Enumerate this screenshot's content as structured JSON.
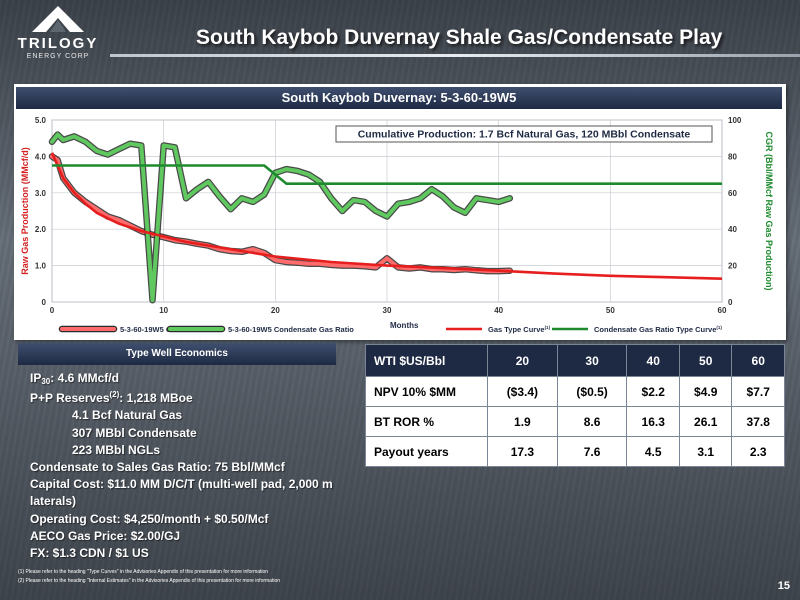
{
  "header": {
    "logo_name": "TRILOGY",
    "logo_sub": "ENERGY CORP",
    "title": "South Kaybob Duvernay Shale Gas/Condensate Play"
  },
  "chart_panel": {
    "title": "South Kaybob Duvernay: 5-3-60-19W5"
  },
  "chart_data": {
    "type": "line",
    "title": "South Kaybob Duvernay: 5-3-60-19W5",
    "annotation": "Cumulative Production: 1.7 Bcf Natural Gas, 120 MBbl Condensate",
    "xlabel": "Months",
    "ylabel": "Raw Gas Production (MMcf/d)",
    "y2label": "CGR (Bbl/MMcf Raw Gas Production)",
    "xlim": [
      0,
      60
    ],
    "ylim": [
      0,
      5
    ],
    "y2lim": [
      0,
      100
    ],
    "x_ticks": [
      "0",
      "10",
      "20",
      "30",
      "40",
      "50",
      "60"
    ],
    "y_ticks": [
      "0",
      "1.0",
      "2.0",
      "3.0",
      "4.0",
      "5.0"
    ],
    "y2_ticks": [
      "0",
      "20",
      "40",
      "60",
      "80",
      "100"
    ],
    "grid": true,
    "legend_position": "bottom",
    "series": [
      {
        "name": "5-3-60-19W5 Gas",
        "axis": "left",
        "color": "#ff6b6b",
        "style": "actual",
        "x": [
          0,
          0.5,
          1,
          2,
          3,
          4,
          5,
          6,
          7,
          8,
          9,
          10,
          11,
          12,
          13,
          14,
          15,
          16,
          17,
          18,
          19,
          20,
          21,
          22,
          23,
          24,
          25,
          26,
          27,
          28,
          29,
          30,
          31,
          32,
          33,
          34,
          35,
          36,
          37,
          38,
          39,
          40,
          41
        ],
        "values": [
          4.0,
          3.9,
          3.4,
          3.0,
          2.75,
          2.55,
          2.35,
          2.25,
          2.1,
          1.95,
          1.85,
          1.78,
          1.7,
          1.66,
          1.6,
          1.55,
          1.45,
          1.4,
          1.38,
          1.45,
          1.35,
          1.15,
          1.1,
          1.08,
          1.05,
          1.05,
          1.02,
          1.0,
          1.0,
          0.98,
          0.95,
          1.2,
          0.95,
          0.92,
          0.95,
          0.9,
          0.9,
          0.88,
          0.9,
          0.87,
          0.85,
          0.85,
          0.86
        ]
      },
      {
        "name": "5-3-60-19W5 Condensate Gas Ratio",
        "axis": "right",
        "color": "#5fc85f",
        "style": "actual",
        "x": [
          0,
          0.5,
          1,
          2,
          3,
          4,
          5,
          6,
          7,
          8,
          9,
          10,
          11,
          12,
          13,
          14,
          15,
          16,
          17,
          18,
          19,
          20,
          21,
          22,
          23,
          24,
          25,
          26,
          27,
          28,
          29,
          30,
          31,
          32,
          33,
          34,
          35,
          36,
          37,
          38,
          39,
          40,
          41
        ],
        "values": [
          88,
          92,
          89,
          91,
          88,
          83,
          81,
          84,
          87,
          86,
          1,
          86,
          85,
          57,
          62,
          66,
          58,
          51,
          57,
          55,
          59,
          71,
          73,
          72,
          70,
          66,
          57,
          50,
          56,
          55,
          50,
          47,
          54,
          55,
          57,
          62,
          58,
          52,
          49,
          57,
          56,
          55,
          57
        ]
      },
      {
        "name": "Gas Type Curve",
        "name_superscript": "(1)",
        "axis": "left",
        "color": "#e61e1e",
        "style": "type",
        "x": [
          0,
          1,
          2,
          3,
          4,
          5,
          6,
          8,
          10,
          12,
          15,
          18,
          20,
          25,
          30,
          35,
          40,
          45,
          50,
          55,
          60
        ],
        "values": [
          4.1,
          3.4,
          3.0,
          2.7,
          2.45,
          2.3,
          2.15,
          1.95,
          1.8,
          1.65,
          1.5,
          1.35,
          1.25,
          1.1,
          1.0,
          0.93,
          0.86,
          0.78,
          0.72,
          0.68,
          0.64
        ]
      },
      {
        "name": "Condensate Gas Ratio Type Curve",
        "name_superscript": "(1)",
        "axis": "right",
        "color": "#1e8a2e",
        "style": "type",
        "x": [
          0,
          19,
          21,
          60
        ],
        "values": [
          75,
          75,
          65,
          65
        ]
      }
    ]
  },
  "economics": {
    "header": "Type Well Economics",
    "ip_label": "IP",
    "ip_sub": "30",
    "ip_value": ": 4.6 MMcf/d",
    "reserves_label": "P+P Reserves",
    "reserves_sup": "(2)",
    "reserves_value": ":  1,218 MBoe",
    "reserves_breakdown": [
      "4.1 Bcf Natural Gas",
      "307 MBbl Condensate",
      "223 MBbl NGLs"
    ],
    "lines": [
      "Condensate to Sales Gas Ratio: 75 Bbl/MMcf",
      "Capital Cost: $11.0 MM D/C/T  (multi-well pad, 2,000 m laterals)",
      "Operating Cost: $4,250/month + $0.50/Mcf",
      "AECO Gas Price:  $2.00/GJ",
      "FX: $1.3 CDN / $1 US"
    ]
  },
  "econ_table": {
    "header": [
      "WTI $US/Bbl",
      "20",
      "30",
      "40",
      "50",
      "60"
    ],
    "rows": [
      [
        "NPV 10% $MM",
        "($3.4)",
        "($0.5)",
        "$2.2",
        "$4.9",
        "$7.7"
      ],
      [
        "BT ROR %",
        "1.9",
        "8.6",
        "16.3",
        "26.1",
        "37.8"
      ],
      [
        "Payout years",
        "17.3",
        "7.6",
        "4.5",
        "3.1",
        "2.3"
      ]
    ]
  },
  "footnotes": [
    "(1) Please refer to the heading \"Type Curves\" in the Advisories Appendix of this presentation for more information",
    "(2) Please refer to the heading \"Internal Estimates\" in the Advisories Appendix of this presentation for more information"
  ],
  "page_number": "15"
}
